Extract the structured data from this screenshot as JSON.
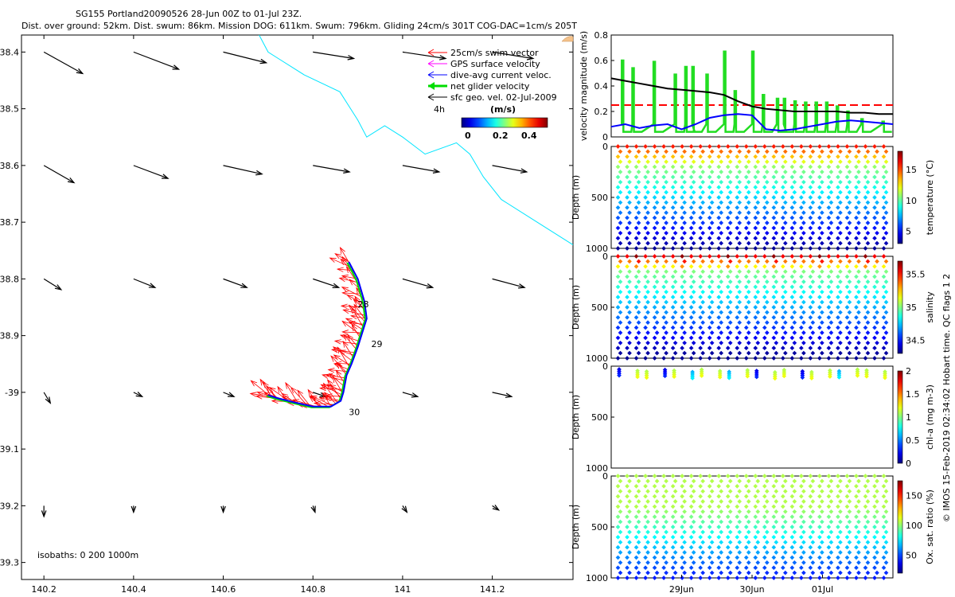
{
  "title": {
    "line1": "SG155 Portland20090526 28-Jun 00Z to 01-Jul 23Z.",
    "line2": "Dist. over ground: 52km. Dist. swum: 86km. Mission DOG: 611km. Swum: 796km. Gliding 24cm/s 301T COG-DAC=1cm/s 205T"
  },
  "side_label": "© IMOS 15-Feb-2019 02:34:02 Hobart time. QC flags 1  2",
  "colors": {
    "swim": "#ff0000",
    "gps": "#ff00ff",
    "dac": "#0000ff",
    "net": "#00dd00",
    "geo": "#000000",
    "isobath": "#00e5ff",
    "threshold": "#ff0000",
    "smooth": "#000000"
  },
  "chart_data": [
    {
      "type": "scatter",
      "name": "map",
      "xlim": [
        140.15,
        141.38
      ],
      "ylim": [
        -39.33,
        -38.37
      ],
      "xticks": [
        140.2,
        140.4,
        140.6,
        140.8,
        141,
        141.2
      ],
      "xtick_labels": [
        "140.2",
        "140.4",
        "140.6",
        "140.8",
        "141",
        "141.2"
      ],
      "yticks": [
        -38.4,
        -38.5,
        -38.6,
        -38.7,
        -38.8,
        -38.9,
        -39,
        -39.1,
        -39.2,
        -39.3
      ],
      "ytick_labels": [
        "-38.4",
        "-38.5",
        "-38.6",
        "-38.7",
        "-38.8",
        "-38.9",
        "-39",
        "-39.1",
        "-39.2",
        "-39.3"
      ],
      "legend": [
        "25cm/s swim vector",
        "GPS surface velocity",
        "dive-avg current veloc.",
        "net glider velocity",
        "sfc geo. vel. 02-Jul-2009"
      ],
      "legend_note": "4h",
      "colorbar_label": "(m/s)",
      "colorbar_ticks": [
        "0",
        "0.2",
        "0.4"
      ],
      "isobath_label": "isobaths: 0   200   1000m",
      "day_labels": [
        {
          "label": "28",
          "lon": 140.9,
          "lat": -38.85
        },
        {
          "label": "29",
          "lon": 140.93,
          "lat": -38.92
        },
        {
          "label": "30",
          "lon": 140.88,
          "lat": -39.04
        }
      ],
      "geo_grid": {
        "lons": [
          140.2,
          140.4,
          140.6,
          140.8,
          141.0,
          141.2
        ],
        "lats": [
          -38.4,
          -38.6,
          -38.8,
          -39.0,
          -39.2
        ],
        "u": [
          [
            0.18,
            0.21,
            0.2,
            0.19,
            0.2,
            0.19
          ],
          [
            0.14,
            0.16,
            0.18,
            0.17,
            0.17,
            0.16
          ],
          [
            0.08,
            0.1,
            0.11,
            0.12,
            0.14,
            0.15
          ],
          [
            0.03,
            0.04,
            0.05,
            0.06,
            0.07,
            0.09
          ],
          [
            0.0,
            0.0,
            0.0,
            0.01,
            0.02,
            0.03
          ]
        ],
        "v": [
          [
            -0.1,
            -0.08,
            -0.05,
            -0.03,
            -0.03,
            -0.03
          ],
          [
            -0.08,
            -0.06,
            -0.04,
            -0.03,
            -0.03,
            -0.03
          ],
          [
            -0.05,
            -0.04,
            -0.04,
            -0.04,
            -0.04,
            -0.04
          ],
          [
            -0.05,
            -0.02,
            -0.02,
            -0.02,
            -0.02,
            -0.02
          ],
          [
            -0.05,
            -0.03,
            -0.03,
            -0.03,
            -0.03,
            -0.02
          ]
        ]
      },
      "isobath_1000m": [
        [
          140.68,
          -38.37
        ],
        [
          140.7,
          -38.4
        ],
        [
          140.72,
          -38.41
        ],
        [
          140.78,
          -38.44
        ],
        [
          140.86,
          -38.47
        ],
        [
          140.9,
          -38.52
        ],
        [
          140.92,
          -38.55
        ],
        [
          140.96,
          -38.53
        ],
        [
          141.0,
          -38.55
        ],
        [
          141.05,
          -38.58
        ],
        [
          141.12,
          -38.56
        ],
        [
          141.15,
          -38.58
        ],
        [
          141.18,
          -38.62
        ],
        [
          141.22,
          -38.66
        ],
        [
          141.3,
          -38.7
        ],
        [
          141.38,
          -38.74
        ]
      ],
      "track": [
        [
          140.88,
          -38.77
        ],
        [
          140.9,
          -38.8
        ],
        [
          140.915,
          -38.84
        ],
        [
          140.92,
          -38.87
        ],
        [
          140.912,
          -38.89
        ],
        [
          140.9,
          -38.92
        ],
        [
          140.886,
          -38.95
        ],
        [
          140.875,
          -38.97
        ],
        [
          140.868,
          -39.0
        ],
        [
          140.862,
          -39.015
        ],
        [
          140.84,
          -39.025
        ],
        [
          140.8,
          -39.025
        ],
        [
          140.76,
          -39.018
        ],
        [
          140.72,
          -39.01
        ],
        [
          140.7,
          -39.005
        ]
      ]
    },
    {
      "type": "line",
      "name": "velocity",
      "ylabel": "velocity magnitude (m/s)",
      "xlim": [
        0,
        4
      ],
      "ylim": [
        0,
        0.8
      ],
      "yticks": [
        0,
        0.2,
        0.4,
        0.6,
        0.8
      ],
      "ytick_labels": [
        "0",
        "0.2",
        "0.4",
        "0.6",
        "0.8"
      ],
      "threshold": 0.25,
      "series": [
        {
          "name": "gliding speed",
          "x": [
            0,
            0.2,
            0.4,
            0.6,
            0.8,
            1.0,
            1.2,
            1.4,
            1.6,
            1.8,
            2.0,
            2.2,
            2.4,
            2.6,
            2.8,
            3.0,
            3.2,
            3.4,
            3.6,
            3.8,
            4.0
          ],
          "y": [
            0.46,
            0.44,
            0.42,
            0.4,
            0.38,
            0.37,
            0.36,
            0.35,
            0.33,
            0.28,
            0.24,
            0.22,
            0.21,
            0.2,
            0.2,
            0.2,
            0.2,
            0.19,
            0.19,
            0.18,
            0.18
          ]
        },
        {
          "name": "dive-avg current",
          "x": [
            0,
            0.2,
            0.4,
            0.6,
            0.8,
            1.0,
            1.2,
            1.4,
            1.6,
            1.8,
            2.0,
            2.2,
            2.4,
            2.6,
            2.8,
            3.0,
            3.2,
            3.4,
            3.6,
            3.8,
            4.0
          ],
          "y": [
            0.08,
            0.1,
            0.07,
            0.09,
            0.1,
            0.06,
            0.1,
            0.15,
            0.17,
            0.18,
            0.17,
            0.06,
            0.05,
            0.06,
            0.08,
            0.1,
            0.12,
            0.13,
            0.12,
            0.11,
            0.1
          ]
        },
        {
          "name": "net velocity spikes",
          "x": [
            0.15,
            0.3,
            0.6,
            0.9,
            1.05,
            1.15,
            1.35,
            1.6,
            1.75,
            2.0,
            2.15,
            2.35,
            2.45,
            2.6,
            2.75,
            2.9,
            3.05,
            3.2,
            3.35,
            3.55,
            3.85
          ],
          "y": [
            0.6,
            0.54,
            0.59,
            0.49,
            0.55,
            0.55,
            0.49,
            0.67,
            0.36,
            0.67,
            0.33,
            0.3,
            0.3,
            0.28,
            0.27,
            0.27,
            0.27,
            0.24,
            0.2,
            0.14,
            0.12
          ]
        }
      ]
    },
    {
      "type": "scatter",
      "name": "temperature",
      "ylabel": "Depth (m)",
      "cbar_label": "temperature (°C)",
      "ylim": [
        1000,
        0
      ],
      "yticks": [
        "0",
        "500",
        "1000"
      ],
      "cbar_ticks": [
        "5",
        "10",
        "15"
      ],
      "cbar_range": [
        3,
        18
      ],
      "profiles": 30
    },
    {
      "type": "scatter",
      "name": "salinity",
      "ylabel": "Depth (m)",
      "cbar_label": "salinity",
      "ylim": [
        1000,
        0
      ],
      "yticks": [
        "0",
        "500",
        "1000"
      ],
      "cbar_ticks": [
        "34.5",
        "35",
        "35.5"
      ],
      "cbar_range": [
        34.3,
        35.7
      ],
      "profiles": 30
    },
    {
      "type": "scatter",
      "name": "chlorophyll",
      "ylabel": "Depth (m)",
      "cbar_label": "chl-a (mg m-3)",
      "ylim": [
        1000,
        0
      ],
      "yticks": [
        "0",
        "500",
        "1000"
      ],
      "cbar_ticks": [
        "0",
        "0.5",
        "1",
        "1.5",
        "2"
      ],
      "cbar_range": [
        0,
        2
      ],
      "profiles": 30
    },
    {
      "type": "scatter",
      "name": "oxygen",
      "ylabel": "Depth (m)",
      "cbar_label": "Ox. sat. ratio (%)",
      "ylim": [
        1000,
        0
      ],
      "yticks": [
        "0",
        "500",
        "1000"
      ],
      "cbar_ticks": [
        "50",
        "100",
        "150"
      ],
      "cbar_range": [
        20,
        175
      ],
      "profiles": 30,
      "xticks": [
        "29Jun",
        "30Jun",
        "01Jul"
      ],
      "xtick_days": [
        1,
        2,
        3
      ]
    }
  ]
}
